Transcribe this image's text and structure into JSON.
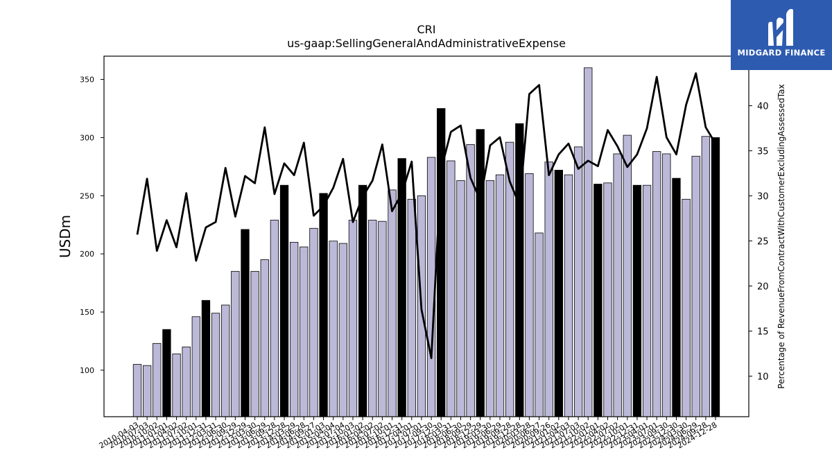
{
  "chart_data": {
    "type": "bar+line",
    "title": "CRI",
    "subtitle": "us-gaap:SellingGeneralAndAdministrativeExpense",
    "ylabel_left": "USDm",
    "ylabel_right": "Percentage of RevenueFromContractWithCustomerExcludingAssessedTax",
    "ylim_left": [
      60,
      370
    ],
    "ylim_right": [
      5.5,
      45.5
    ],
    "yticks_left": [
      100,
      150,
      200,
      250,
      300,
      350
    ],
    "yticks_right": [
      10,
      15,
      20,
      25,
      30,
      35,
      40
    ],
    "categories": [
      "2010-04-03",
      "2010-07-03",
      "2010-10-02",
      "2011-01-01",
      "2011-04-02",
      "2011-07-02",
      "2011-10-01",
      "2011-12-31",
      "2012-03-31",
      "2012-06-30",
      "2012-09-29",
      "2012-12-29",
      "2013-03-30",
      "2013-06-29",
      "2013-09-28",
      "2013-12-28",
      "2014-03-29",
      "2014-06-28",
      "2014-09-27",
      "2015-01-03",
      "2015-04-04",
      "2015-07-04",
      "2015-10-03",
      "2016-01-02",
      "2016-04-02",
      "2016-07-02",
      "2016-10-01",
      "2016-12-31",
      "2017-04-01",
      "2017-07-01",
      "2017-09-30",
      "2017-12-30",
      "2018-03-31",
      "2018-06-30",
      "2018-09-29",
      "2018-12-29",
      "2019-03-30",
      "2019-06-29",
      "2019-09-28",
      "2019-12-28",
      "2020-03-28",
      "2020-06-27",
      "2020-09-26",
      "2021-01-02",
      "2021-04-03",
      "2021-07-03",
      "2021-10-02",
      "2022-01-01",
      "2022-04-02",
      "2022-07-02",
      "2022-10-01",
      "2022-12-31",
      "2023-04-01",
      "2023-07-01",
      "2023-09-30",
      "2023-12-30",
      "2024-03-30",
      "2024-06-29",
      "2024-09-28",
      "2024-12-28"
    ],
    "series": [
      {
        "type": "bar",
        "values": [
          105,
          104,
          123,
          135,
          114,
          120,
          146,
          160,
          149,
          156,
          185,
          221,
          185,
          195,
          229,
          259,
          210,
          206,
          222,
          252,
          211,
          209,
          229,
          259,
          229,
          228,
          255,
          282,
          247,
          250,
          283,
          325,
          280,
          263,
          294,
          307,
          263,
          268,
          296,
          312,
          269,
          218,
          279,
          272,
          268,
          292,
          360,
          260,
          261,
          286,
          302,
          259,
          259,
          288,
          286,
          265,
          247,
          284,
          301,
          300
        ]
      },
      {
        "type": "line",
        "values": [
          25.7,
          31.9,
          23.9,
          27.3,
          24.3,
          30.3,
          22.8,
          26.5,
          27.1,
          33.1,
          27.7,
          32.2,
          31.4,
          37.6,
          30.2,
          33.6,
          32.3,
          35.9,
          27.8,
          28.9,
          30.9,
          34.1,
          27.1,
          29.9,
          31.7,
          35.7,
          28.3,
          30.3,
          33.8,
          17.4,
          12.0,
          32.9,
          37.1,
          37.8,
          32.0,
          29.5,
          35.6,
          36.5,
          31.6,
          29.0,
          41.3,
          42.3,
          32.3,
          34.6,
          35.8,
          33.0,
          33.9,
          33.3,
          37.3,
          35.5,
          33.2,
          34.6,
          37.5,
          43.2,
          36.5,
          34.6,
          40.1,
          43.6,
          37.6,
          35.8
        ]
      }
    ],
    "highlight_bar_indices": [
      3,
      7,
      11,
      15,
      19,
      23,
      27,
      31,
      35,
      39,
      43,
      47,
      51,
      55,
      59
    ],
    "colors": {
      "bar": "#bcb8d8",
      "bar_highlight": "#000000",
      "line": "#000000"
    }
  },
  "logo": {
    "text": "MIDGARD FINANCE",
    "icon": "midgard-m-logo-icon"
  }
}
